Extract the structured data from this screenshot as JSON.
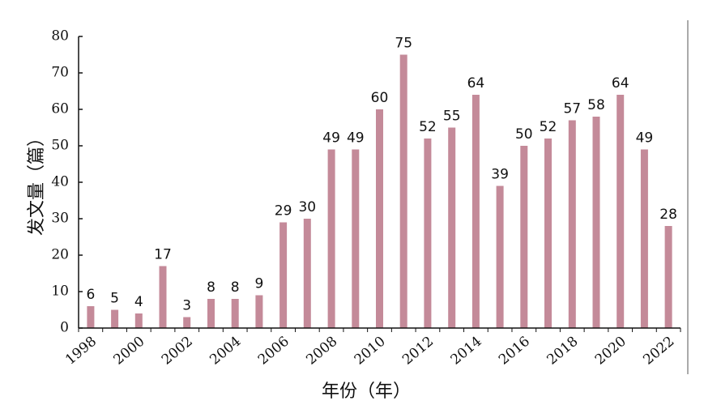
{
  "chart_data": {
    "type": "bar",
    "categories": [
      "1998",
      "1999",
      "2000",
      "2001",
      "2002",
      "2003",
      "2004",
      "2005",
      "2006",
      "2007",
      "2008",
      "2009",
      "2010",
      "2011",
      "2012",
      "2013",
      "2014",
      "2015",
      "2016",
      "2017",
      "2018",
      "2019",
      "2020",
      "2021",
      "2022"
    ],
    "x_tick_labels": [
      "1998",
      "2000",
      "2002",
      "2004",
      "2006",
      "2008",
      "2010",
      "2012",
      "2014",
      "2016",
      "2018",
      "2020",
      "2022"
    ],
    "values": [
      6,
      5,
      4,
      17,
      3,
      8,
      8,
      9,
      29,
      30,
      49,
      49,
      60,
      75,
      52,
      55,
      64,
      39,
      50,
      52,
      57,
      58,
      64,
      49,
      28
    ],
    "ylim": [
      0,
      80
    ],
    "y_ticks": [
      0,
      10,
      20,
      30,
      40,
      50,
      60,
      70,
      80
    ],
    "ylabel": "发文量（篇）",
    "xlabel": "年份（年）",
    "bar_color": "#c48a99",
    "grid": false
  }
}
